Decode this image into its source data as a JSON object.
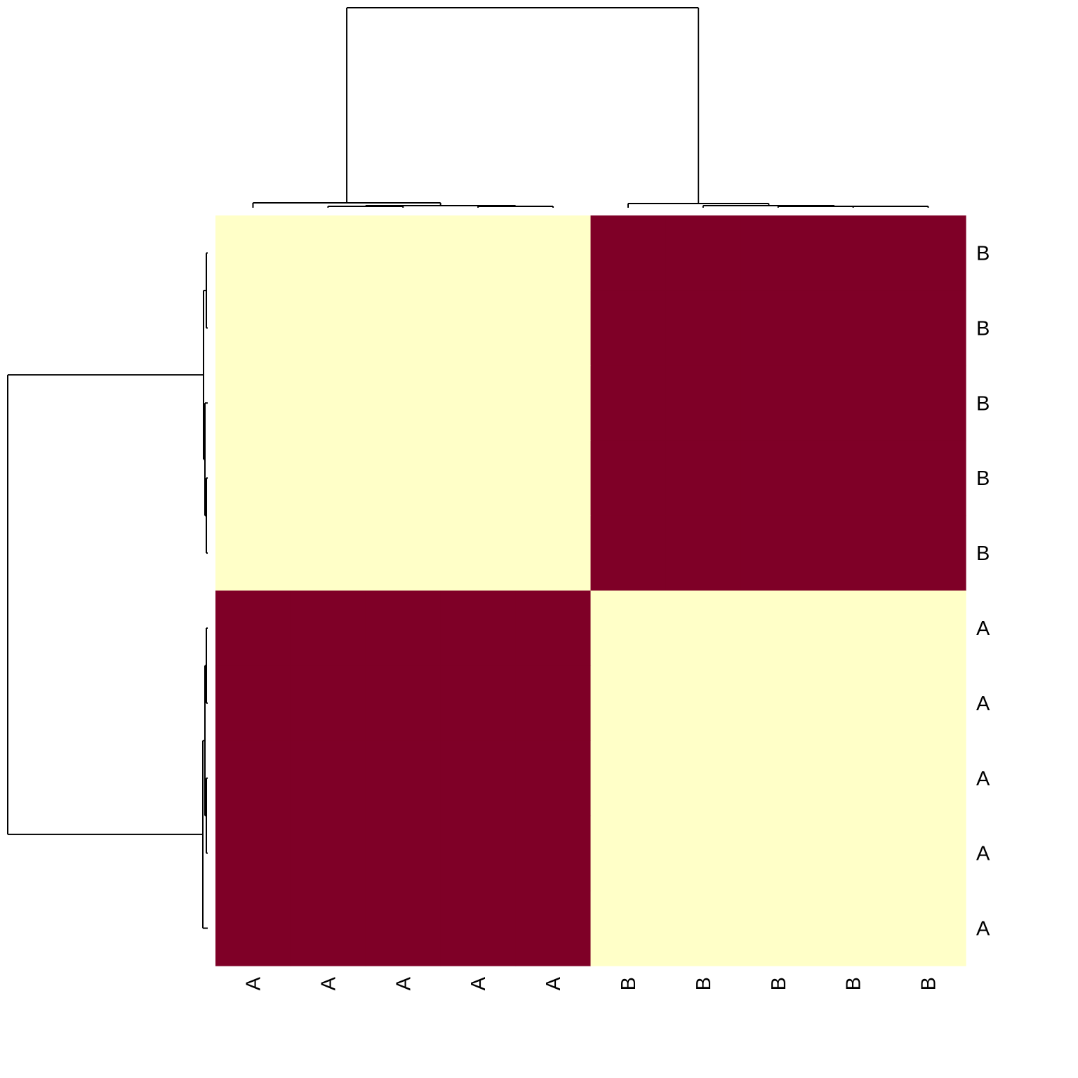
{
  "chart_data": {
    "type": "heatmap",
    "row_labels": [
      "B",
      "B",
      "B",
      "B",
      "B",
      "A",
      "A",
      "A",
      "A",
      "A"
    ],
    "col_labels": [
      "A",
      "A",
      "A",
      "A",
      "A",
      "B",
      "B",
      "B",
      "B",
      "B"
    ],
    "values": [
      [
        0,
        0,
        0,
        0,
        0,
        1,
        1,
        1,
        1,
        1
      ],
      [
        0,
        0,
        0,
        0,
        0,
        1,
        1,
        1,
        1,
        1
      ],
      [
        0,
        0,
        0,
        0,
        0,
        1,
        1,
        1,
        1,
        1
      ],
      [
        0,
        0,
        0,
        0,
        0,
        1,
        1,
        1,
        1,
        1
      ],
      [
        0,
        0,
        0,
        0,
        0,
        1,
        1,
        1,
        1,
        1
      ],
      [
        1,
        1,
        1,
        1,
        1,
        0,
        0,
        0,
        0,
        0
      ],
      [
        1,
        1,
        1,
        1,
        1,
        0,
        0,
        0,
        0,
        0
      ],
      [
        1,
        1,
        1,
        1,
        1,
        0,
        0,
        0,
        0,
        0
      ],
      [
        1,
        1,
        1,
        1,
        1,
        0,
        0,
        0,
        0,
        0
      ],
      [
        1,
        1,
        1,
        1,
        1,
        0,
        0,
        0,
        0,
        0
      ]
    ],
    "color_low": "#FFFFC8",
    "color_high": "#7F0027",
    "dendrogram_color": "#000000",
    "row_dendrogram": true,
    "col_dendrogram": true,
    "row_dendrogram_side": "left",
    "col_dendrogram_side": "top",
    "row_label_side": "right",
    "col_label_side": "bottom",
    "col_label_rotation": "vertical",
    "grid": false,
    "legend": "none"
  }
}
